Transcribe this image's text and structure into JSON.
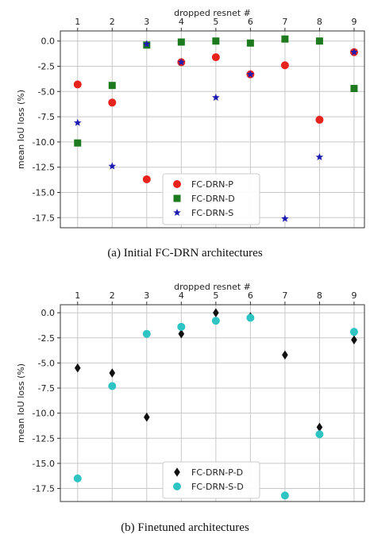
{
  "chart_data": [
    {
      "type": "scatter",
      "xlabel": "dropped resnet #",
      "ylabel": "mean IoU loss (%)",
      "x_ticks": [
        "1",
        "2",
        "3",
        "4",
        "5",
        "6",
        "7",
        "8",
        "9"
      ],
      "y_ticks": [
        "0.0",
        "-2.5",
        "-5.0",
        "-7.5",
        "-10.0",
        "-12.5",
        "-15.0",
        "-17.5"
      ],
      "ylim": [
        -18.5,
        1.0
      ],
      "xlim": [
        0.5,
        9.3
      ],
      "grid": true,
      "x_axis_position": "top",
      "legend_position": "bottom-center",
      "caption": "(a)  Initial FC-DRN architectures",
      "series": [
        {
          "name": "FC-DRN-P",
          "marker": "circle",
          "color": "#e8221c",
          "x": [
            1,
            2,
            3,
            4,
            5,
            6,
            7,
            8,
            9
          ],
          "y": [
            -4.3,
            -6.1,
            -13.7,
            -2.1,
            -1.6,
            -3.3,
            -2.4,
            -7.8,
            -1.1
          ]
        },
        {
          "name": "FC-DRN-D",
          "marker": "square",
          "color": "#1e7a1e",
          "x": [
            1,
            2,
            3,
            4,
            5,
            6,
            7,
            8,
            9
          ],
          "y": [
            -10.1,
            -4.4,
            -0.4,
            -0.1,
            0.0,
            -0.2,
            0.2,
            0.0,
            -4.7
          ]
        },
        {
          "name": "FC-DRN-S",
          "marker": "star",
          "color": "#1c1cb0",
          "x": [
            1,
            2,
            3,
            4,
            5,
            6,
            7,
            8,
            9
          ],
          "y": [
            -8.1,
            -12.4,
            -0.3,
            -2.1,
            -5.6,
            -3.3,
            -17.6,
            -11.5,
            -1.1
          ]
        }
      ]
    },
    {
      "type": "scatter",
      "xlabel": "dropped resnet #",
      "ylabel": "mean IoU loss (%)",
      "x_ticks": [
        "1",
        "2",
        "3",
        "4",
        "5",
        "6",
        "7",
        "8",
        "9"
      ],
      "y_ticks": [
        "0.0",
        "-2.5",
        "-5.0",
        "-7.5",
        "-10.0",
        "-12.5",
        "-15.0",
        "-17.5"
      ],
      "ylim": [
        -18.8,
        0.8
      ],
      "xlim": [
        0.5,
        9.3
      ],
      "grid": true,
      "x_axis_position": "top",
      "legend_position": "bottom-center",
      "caption": "(b)  Finetuned architectures",
      "series": [
        {
          "name": "FC-DRN-P-D",
          "marker": "diamond",
          "color": "#111111",
          "x": [
            1,
            2,
            3,
            4,
            5,
            6,
            7,
            8,
            9
          ],
          "y": [
            -5.5,
            -6.0,
            -10.4,
            -2.1,
            0.0,
            -0.4,
            -4.2,
            -11.4,
            -2.7
          ]
        },
        {
          "name": "FC-DRN-S-D",
          "marker": "circle",
          "color": "#2ec4c4",
          "x": [
            1,
            2,
            3,
            4,
            5,
            6,
            7,
            8,
            9
          ],
          "y": [
            -16.5,
            -7.3,
            -2.1,
            -1.4,
            -0.8,
            -0.5,
            -18.2,
            -12.1,
            -1.9
          ]
        }
      ]
    }
  ]
}
